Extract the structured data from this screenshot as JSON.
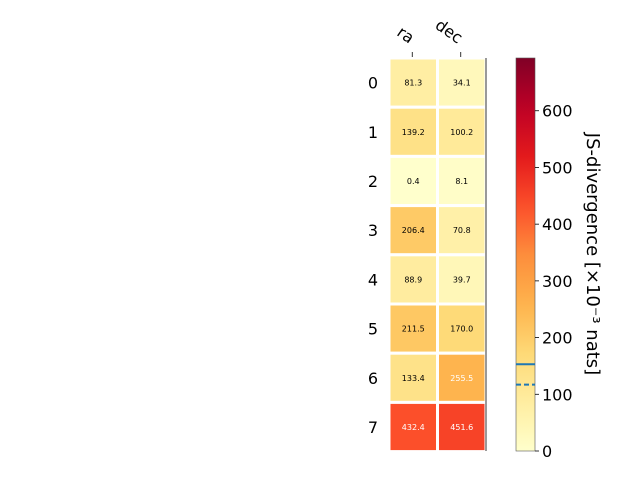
{
  "chart_data": {
    "type": "heatmap",
    "columns": [
      "ra",
      "dec"
    ],
    "rows": [
      "0",
      "1",
      "2",
      "3",
      "4",
      "5",
      "6",
      "7"
    ],
    "values": [
      [
        81.3,
        34.1
      ],
      [
        139.2,
        100.2
      ],
      [
        0.4,
        8.1
      ],
      [
        206.4,
        70.8
      ],
      [
        88.9,
        39.7
      ],
      [
        211.5,
        170.0
      ],
      [
        133.4,
        255.5
      ],
      [
        432.4,
        451.6
      ]
    ],
    "value_labels": [
      [
        "81.3",
        "34.1"
      ],
      [
        "139.2",
        "100.2"
      ],
      [
        "0.4",
        "8.1"
      ],
      [
        "206.4",
        "70.8"
      ],
      [
        "88.9",
        "39.7"
      ],
      [
        "211.5",
        "170.0"
      ],
      [
        "133.4",
        "255.5"
      ],
      [
        "432.4",
        "451.6"
      ]
    ],
    "colormap": "YlOrRd",
    "colorbar": {
      "label": "JS-divergence [×10⁻³ nats]",
      "range": [
        0,
        693
      ],
      "ticks": [
        0,
        100,
        200,
        300,
        400,
        500,
        600
      ],
      "tick_labels": [
        "0",
        "100",
        "200",
        "300",
        "400",
        "500",
        "600"
      ],
      "markers": [
        {
          "value": 153,
          "style": "solid",
          "color": "#1f77b4"
        },
        {
          "value": 117,
          "style": "dashed",
          "color": "#1f77b4"
        }
      ]
    }
  }
}
